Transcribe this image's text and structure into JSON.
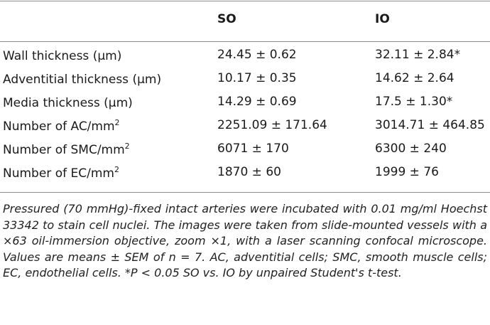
{
  "table": {
    "headers": [
      "",
      "SO",
      "IO"
    ],
    "rows": [
      {
        "label": "Wall thickness (μm)",
        "label_sup": "",
        "so": "24.45 ± 0.62",
        "io": "32.11 ± 2.84*"
      },
      {
        "label": "Adventitial thickness (μm)",
        "label_sup": "",
        "so": "10.17 ± 0.35",
        "io": "14.62 ± 2.64"
      },
      {
        "label": "Media thickness (μm)",
        "label_sup": "",
        "so": "14.29 ± 0.69",
        "io": "17.5 ± 1.30*"
      },
      {
        "label": "Number of AC/mm",
        "label_sup": "2",
        "so": "2251.09 ± 171.64",
        "io": "3014.71 ± 464.85"
      },
      {
        "label": "Number of SMC/mm",
        "label_sup": "2",
        "so": "6071 ± 170",
        "io": "6300 ± 240"
      },
      {
        "label": "Number of EC/mm",
        "label_sup": "2",
        "so": "1870 ± 60",
        "io": "1999 ± 76"
      }
    ]
  },
  "footnote": "Pressured (70 mmHg)-fixed intact arteries were incubated with 0.01 mg/ml Hoechst 33342 to stain cell nuclei. The images were taken from slide-mounted vessels with a ×63 oil-immersion objective, zoom ×1, with a laser scanning confocal microscope. Values are means ± SEM of n = 7. AC, adventitial cells; SMC, smooth muscle cells; EC, endothelial cells. *P < 0.05 SO vs. IO by unpaired Student's t-test."
}
